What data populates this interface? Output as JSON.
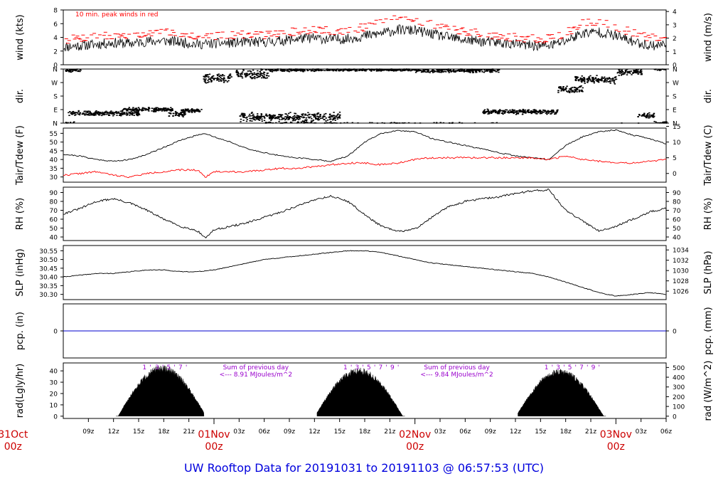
{
  "title": "UW Rooftop Data for 20191031  to  20191103 @ 06:57:53  (UTC)",
  "colors": {
    "axis": "#000000",
    "peak": "#ff0000",
    "dew": "#ff0000",
    "precip": "#0000cc",
    "title": "#0000dd",
    "annotation": "#9900cc",
    "date": "#cc0000"
  },
  "x_axis": {
    "units": "hours from 2019-10-31 06:00Z",
    "range": [
      0,
      72
    ],
    "ticks": [
      {
        "x": 3,
        "label": "09z"
      },
      {
        "x": 6,
        "label": "12z"
      },
      {
        "x": 9,
        "label": "15z"
      },
      {
        "x": 12,
        "label": "18z"
      },
      {
        "x": 15,
        "label": "21z"
      },
      {
        "x": 21,
        "label": "03z"
      },
      {
        "x": 24,
        "label": "06z"
      },
      {
        "x": 27,
        "label": "09z"
      },
      {
        "x": 30,
        "label": "12z"
      },
      {
        "x": 33,
        "label": "15z"
      },
      {
        "x": 36,
        "label": "18z"
      },
      {
        "x": 39,
        "label": "21z"
      },
      {
        "x": 45,
        "label": "03z"
      },
      {
        "x": 48,
        "label": "06z"
      },
      {
        "x": 51,
        "label": "09z"
      },
      {
        "x": 54,
        "label": "12z"
      },
      {
        "x": 57,
        "label": "15z"
      },
      {
        "x": 60,
        "label": "18z"
      },
      {
        "x": 63,
        "label": "21z"
      },
      {
        "x": 69,
        "label": "03z"
      },
      {
        "x": 72,
        "label": "06z"
      }
    ],
    "date_ticks": [
      {
        "x": -6,
        "label": "31Oct",
        "sub": "00z"
      },
      {
        "x": 18,
        "label": "01Nov",
        "sub": "00z"
      },
      {
        "x": 42,
        "label": "02Nov",
        "sub": "00z"
      },
      {
        "x": 66,
        "label": "03Nov",
        "sub": "00z"
      }
    ]
  },
  "chart_data": [
    {
      "id": "wind",
      "type": "line",
      "ylabel": "wind (kts)",
      "ylabel_right": "wind (m/s)",
      "ylim": [
        0,
        8
      ],
      "yticks": [
        0,
        2,
        4,
        6,
        8
      ],
      "right_ticks": [
        {
          "y": 0,
          "label": "0"
        },
        {
          "y": 1.944,
          "label": "1"
        },
        {
          "y": 3.888,
          "label": "2"
        },
        {
          "y": 5.832,
          "label": "3"
        },
        {
          "y": 7.776,
          "label": "4"
        }
      ],
      "annotation": "10 min. peak winds in red",
      "x": [
        0,
        2,
        4,
        6,
        8,
        10,
        12,
        14,
        16,
        18,
        20,
        22,
        24,
        26,
        28,
        30,
        32,
        34,
        36,
        38,
        40,
        42,
        44,
        46,
        48,
        50,
        52,
        54,
        56,
        58,
        60,
        62,
        64,
        66,
        68,
        70,
        72
      ],
      "series": [
        {
          "role": "mean",
          "values": [
            2.6,
            2.8,
            3.0,
            3.2,
            3.1,
            3.4,
            3.5,
            3.3,
            3.0,
            3.1,
            3.2,
            3.3,
            3.3,
            3.5,
            3.8,
            3.9,
            3.7,
            3.8,
            4.2,
            4.6,
            5.1,
            5.0,
            4.5,
            4.0,
            3.6,
            3.4,
            3.2,
            3.0,
            2.8,
            2.8,
            3.5,
            4.6,
            4.8,
            4.2,
            3.4,
            2.8,
            3.0
          ]
        },
        {
          "role": "peak",
          "values": [
            3.6,
            3.9,
            4.1,
            4.2,
            4.2,
            4.5,
            4.7,
            4.6,
            4.2,
            4.2,
            4.3,
            4.4,
            4.4,
            4.6,
            4.9,
            5.1,
            5.0,
            5.0,
            5.5,
            6.1,
            6.8,
            6.6,
            5.9,
            5.3,
            4.8,
            4.5,
            4.2,
            4.0,
            3.8,
            3.8,
            4.6,
            6.0,
            6.4,
            5.6,
            4.6,
            3.9,
            4.0
          ]
        }
      ]
    },
    {
      "id": "dir",
      "type": "scatter",
      "ylabel": "dir.",
      "ylabel_right": "dir.",
      "ylim": [
        0,
        360
      ],
      "yticks": [
        {
          "y": 0,
          "label": "N"
        },
        {
          "y": 90,
          "label": "E"
        },
        {
          "y": 180,
          "label": "S"
        },
        {
          "y": 270,
          "label": "W"
        },
        {
          "y": 360,
          "label": "N"
        }
      ],
      "segments": [
        {
          "x": [
            0.2,
            2.0
          ],
          "center": 352,
          "spread": 20
        },
        {
          "x": [
            0.5,
            9.0
          ],
          "center": 65,
          "spread": 18
        },
        {
          "x": [
            7.0,
            13.0
          ],
          "center": 90,
          "spread": 15
        },
        {
          "x": [
            12.5,
            14.5
          ],
          "center": 60,
          "spread": 25
        },
        {
          "x": [
            14.0,
            16.5
          ],
          "center": 85,
          "spread": 15
        },
        {
          "x": [
            16.5,
            20.0
          ],
          "center": 300,
          "spread": 35
        },
        {
          "x": [
            20.5,
            24.5
          ],
          "center": 330,
          "spread": 40
        },
        {
          "x": [
            21.0,
            33.0
          ],
          "center": 40,
          "spread": 35
        },
        {
          "x": [
            24.0,
            30.0
          ],
          "center": 355,
          "spread": 15
        },
        {
          "x": [
            30.0,
            42.0
          ],
          "center": 355,
          "spread": 10
        },
        {
          "x": [
            42.0,
            52.0
          ],
          "center": 350,
          "spread": 15
        },
        {
          "x": [
            50.0,
            59.0
          ],
          "center": 75,
          "spread": 20
        },
        {
          "x": [
            59.0,
            62.0
          ],
          "center": 225,
          "spread": 25
        },
        {
          "x": [
            61.0,
            66.0
          ],
          "center": 290,
          "spread": 30
        },
        {
          "x": [
            66.0,
            69.0
          ],
          "center": 340,
          "spread": 25
        },
        {
          "x": [
            68.5,
            70.5
          ],
          "center": 50,
          "spread": 20
        },
        {
          "x": [
            70.5,
            72.0
          ],
          "center": 360,
          "spread": 12
        }
      ]
    },
    {
      "id": "temp",
      "type": "line",
      "ylabel": "Tair/Tdew (F)",
      "ylabel_right": "Tair/Tdew (C)",
      "ylim": [
        27,
        58
      ],
      "yticks": [
        30,
        35,
        40,
        45,
        50,
        55
      ],
      "right_ticks": [
        {
          "y": 32,
          "label": "0"
        },
        {
          "y": 41,
          "label": "5"
        },
        {
          "y": 50,
          "label": "10"
        },
        {
          "y": 59,
          "label": "15"
        }
      ],
      "x": [
        0,
        2,
        4,
        6,
        8,
        10,
        12,
        14,
        16,
        17,
        18,
        20,
        22,
        24,
        26,
        28,
        30,
        32,
        34,
        36,
        38,
        40,
        42,
        44,
        46,
        48,
        50,
        52,
        54,
        56,
        58,
        60,
        62,
        64,
        66,
        68,
        70,
        72
      ],
      "series": [
        {
          "role": "air",
          "values": [
            43,
            42,
            40,
            39,
            40,
            43,
            47,
            51,
            54,
            55,
            53,
            50,
            46,
            44,
            42,
            41,
            40,
            39,
            42,
            50,
            55,
            56.5,
            56,
            52,
            50,
            48,
            46,
            44,
            42,
            41,
            40,
            48,
            53,
            56,
            57,
            54,
            52,
            49
          ]
        },
        {
          "role": "dew",
          "values": [
            31,
            32,
            33,
            31,
            30,
            32,
            33,
            34,
            34,
            30,
            33,
            33,
            33,
            34,
            35,
            35,
            36,
            37,
            38,
            38,
            37,
            38,
            40,
            41,
            41,
            41,
            41,
            41,
            41,
            41,
            40,
            42,
            40,
            39,
            38,
            38,
            39,
            40
          ]
        }
      ]
    },
    {
      "id": "rh",
      "type": "line",
      "ylabel": "RH (%)",
      "ylabel_right": "RH (%)",
      "ylim": [
        36,
        96
      ],
      "yticks": [
        40,
        50,
        60,
        70,
        80,
        90
      ],
      "x": [
        0,
        2,
        4,
        6,
        8,
        10,
        12,
        14,
        16,
        17,
        18,
        20,
        22,
        24,
        26,
        28,
        30,
        32,
        34,
        36,
        38,
        40,
        42,
        44,
        46,
        48,
        50,
        52,
        54,
        56,
        58,
        60,
        62,
        64,
        66,
        68,
        70,
        72
      ],
      "series": [
        {
          "role": "rh",
          "values": [
            66,
            72,
            80,
            83,
            78,
            70,
            60,
            52,
            47,
            39,
            48,
            52,
            56,
            62,
            68,
            75,
            82,
            86,
            80,
            65,
            52,
            46,
            49,
            62,
            74,
            80,
            83,
            85,
            89,
            92,
            93,
            70,
            58,
            47,
            52,
            60,
            68,
            72
          ]
        }
      ]
    },
    {
      "id": "slp",
      "type": "line",
      "ylabel": "SLP (inHg)",
      "ylabel_right": "SLP (hPa)",
      "ylim": [
        30.27,
        30.58
      ],
      "yticks": [
        30.3,
        30.35,
        30.4,
        30.45,
        30.5,
        30.55
      ],
      "right_ticks": [
        {
          "y": 30.3185,
          "label": "1026"
        },
        {
          "y": 30.3775,
          "label": "1028"
        },
        {
          "y": 30.4366,
          "label": "1030"
        },
        {
          "y": 30.4957,
          "label": "1032"
        },
        {
          "y": 30.5547,
          "label": "1034"
        }
      ],
      "x": [
        0,
        2,
        4,
        6,
        8,
        10,
        12,
        14,
        16,
        18,
        20,
        22,
        24,
        26,
        28,
        30,
        32,
        34,
        36,
        38,
        40,
        42,
        44,
        46,
        48,
        50,
        52,
        54,
        56,
        58,
        60,
        62,
        64,
        66,
        68,
        70,
        72
      ],
      "series": [
        {
          "role": "slp",
          "values": [
            30.4,
            30.41,
            30.42,
            30.42,
            30.43,
            30.44,
            30.44,
            30.43,
            30.43,
            30.44,
            30.46,
            30.48,
            30.5,
            30.51,
            30.52,
            30.53,
            30.54,
            30.55,
            30.55,
            30.54,
            30.52,
            30.5,
            30.48,
            30.47,
            30.46,
            30.45,
            30.44,
            30.43,
            30.42,
            30.4,
            30.37,
            30.34,
            30.31,
            30.29,
            30.3,
            30.31,
            30.3
          ]
        }
      ]
    },
    {
      "id": "pcp",
      "type": "line",
      "ylabel": "pcp. (in)",
      "ylabel_right": "pcp. (mm)",
      "ylim": [
        -1,
        1
      ],
      "yticks": [
        0
      ],
      "right_ticks": [
        {
          "y": 0,
          "label": "0"
        }
      ],
      "x": [
        0,
        72
      ],
      "series": [
        {
          "role": "pcp",
          "values": [
            0,
            0
          ]
        }
      ]
    },
    {
      "id": "rad",
      "type": "area",
      "ylabel": "rad(Lgly/hr)",
      "ylabel_right": "rad (W/m^2)",
      "ylim": [
        -2,
        47
      ],
      "yticks": [
        0,
        10,
        20,
        30,
        40
      ],
      "right_ticks": [
        {
          "y": 0,
          "label": "0"
        },
        {
          "y": 8.6,
          "label": "100"
        },
        {
          "y": 17.2,
          "label": "200"
        },
        {
          "y": 25.8,
          "label": "300"
        },
        {
          "y": 34.4,
          "label": "400"
        },
        {
          "y": 43.0,
          "label": "500"
        }
      ],
      "days": [
        {
          "start": 6.3,
          "end": 16.8,
          "peak": 45,
          "peak_x": 11.8
        },
        {
          "start": 30.3,
          "end": 40.8,
          "peak": 43,
          "peak_x": 35.3
        },
        {
          "start": 54.3,
          "end": 64.8,
          "peak": 42,
          "peak_x": 59.3
        }
      ],
      "hour_marks": [
        {
          "x": 9.7,
          "label": "1"
        },
        {
          "x": 11.2,
          "label": "3"
        },
        {
          "x": 12.6,
          "label": "5"
        },
        {
          "x": 14.0,
          "label": "7"
        },
        {
          "x": 33.7,
          "label": "1"
        },
        {
          "x": 35.1,
          "label": "3"
        },
        {
          "x": 36.5,
          "label": "5"
        },
        {
          "x": 37.9,
          "label": "7"
        },
        {
          "x": 39.3,
          "label": "9"
        },
        {
          "x": 57.7,
          "label": "1"
        },
        {
          "x": 59.1,
          "label": "3"
        },
        {
          "x": 60.5,
          "label": "5"
        },
        {
          "x": 61.9,
          "label": "7"
        },
        {
          "x": 63.3,
          "label": "9"
        }
      ],
      "annotations": [
        {
          "x": 23.0,
          "line1": "Sum of previous day",
          "line2": "<--- 8.91 MJoules/m^2"
        },
        {
          "x": 47.0,
          "line1": "Sum of previous day",
          "line2": "<--- 9.84 MJoules/m^2"
        }
      ]
    }
  ]
}
